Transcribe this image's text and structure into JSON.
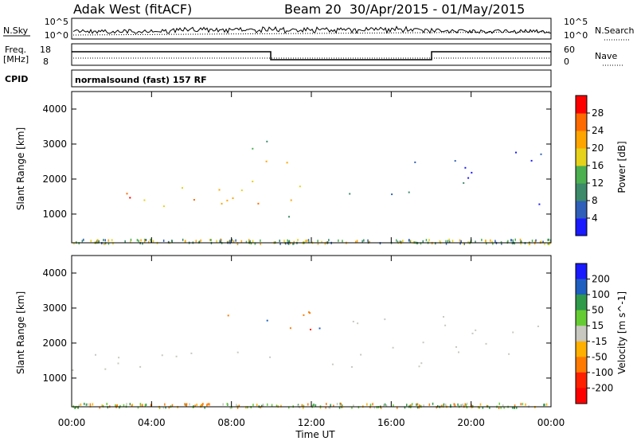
{
  "header": {
    "station": "Adak West (fitACF)",
    "beam_info": "Beam 20  30/Apr/2015 - 01/May/2015"
  },
  "strip_panels": {
    "noise": {
      "left_label": "N.Sky",
      "right_label": "N.Search",
      "left_ticks": [
        "10^5",
        "10^0"
      ],
      "right_ticks": [
        "10^5",
        "10^0"
      ]
    },
    "freq": {
      "left_label_1": "Freq.",
      "left_label_2": "[MHz]",
      "left_ticks": [
        "18",
        "8"
      ],
      "right_label": "Nave",
      "right_ticks": [
        "60",
        "0"
      ]
    },
    "cpid": {
      "label": "CPID",
      "value": "normalsound (fast) 157 RF"
    }
  },
  "x_axis": {
    "ticks": [
      "00:00",
      "04:00",
      "08:00",
      "12:00",
      "16:00",
      "20:00",
      "00:00"
    ],
    "label": "Time UT"
  },
  "colors": {
    "power": [
      "#1a1aff",
      "#2f5fb8",
      "#3c8a6a",
      "#4caf50",
      "#e6d21a",
      "#ffa500",
      "#ff6a00",
      "#ff0000"
    ],
    "velocity": [
      "#1a1aff",
      "#1f5fbf",
      "#2f9a4a",
      "#66cc33",
      "#c8c8c0",
      "#ffb000",
      "#ff7a00",
      "#ff2000",
      "#ff0000"
    ]
  },
  "chart_data": [
    {
      "type": "heatmap",
      "title": "Power",
      "ylabel": "Slant Range [km]",
      "xlabel": "Time UT",
      "x_range_hours": [
        0,
        24
      ],
      "ylim_km": [
        180,
        4500
      ],
      "y_ticks": [
        1000,
        2000,
        3000,
        4000
      ],
      "colorbar": {
        "label": "Power [dB]",
        "ticks": [
          4,
          8,
          12,
          16,
          20,
          24,
          28
        ],
        "range": [
          0,
          32
        ]
      },
      "echo_regions": [
        {
          "t_start": 0.0,
          "t_end": 12.8,
          "r_low": 1200,
          "r_high": 2000,
          "value_dB": 20
        },
        {
          "t_start": 2.5,
          "t_end": 10.5,
          "r_low": 1300,
          "r_high": 1650,
          "value_dB": 28
        },
        {
          "t_start": 0.0,
          "t_end": 3.0,
          "r_low": 1450,
          "r_high": 1750,
          "value_dB": 24
        },
        {
          "t_start": 5.5,
          "t_end": 10.0,
          "r_low": 2800,
          "r_high": 3200,
          "value_dB": 12
        },
        {
          "t_start": 7.0,
          "t_end": 11.0,
          "r_low": 2400,
          "r_high": 2900,
          "value_dB": 20
        },
        {
          "t_start": 13.0,
          "t_end": 18.0,
          "r_low": 1300,
          "r_high": 1800,
          "value_dB": 8
        },
        {
          "t_start": 10.2,
          "t_end": 14.0,
          "r_low": 800,
          "r_high": 1000,
          "value_dB": 8
        },
        {
          "t_start": 16.0,
          "t_end": 24.0,
          "r_low": 1800,
          "r_high": 2800,
          "value_dB": 6
        },
        {
          "t_start": 18.5,
          "t_end": 24.0,
          "r_low": 1150,
          "r_high": 1350,
          "value_dB": 6
        }
      ]
    },
    {
      "type": "heatmap",
      "title": "Velocity",
      "ylabel": "Slant Range [km]",
      "xlabel": "Time UT",
      "x_range_hours": [
        0,
        24
      ],
      "ylim_km": [
        180,
        4500
      ],
      "y_ticks": [
        1000,
        2000,
        3000,
        4000
      ],
      "colorbar": {
        "label": "Velocity [m s^-1]",
        "ticks": [
          200,
          100,
          50,
          15,
          -15,
          -50,
          -100,
          -200
        ]
      },
      "echo_regions": [
        {
          "t_start": 0.0,
          "t_end": 12.8,
          "r_low": 1200,
          "r_high": 2000,
          "value_ms": 0
        },
        {
          "t_start": 7.0,
          "t_end": 12.8,
          "r_low": 2300,
          "r_high": 3000,
          "value_ms": -80
        },
        {
          "t_start": 9.0,
          "t_end": 12.5,
          "r_low": 2400,
          "r_high": 2800,
          "value_ms": 150
        },
        {
          "t_start": 10.5,
          "t_end": 12.5,
          "r_low": 2350,
          "r_high": 2600,
          "value_ms": -200
        },
        {
          "t_start": 13.0,
          "t_end": 24.0,
          "r_low": 1200,
          "r_high": 2800,
          "value_ms": 0
        }
      ]
    }
  ]
}
